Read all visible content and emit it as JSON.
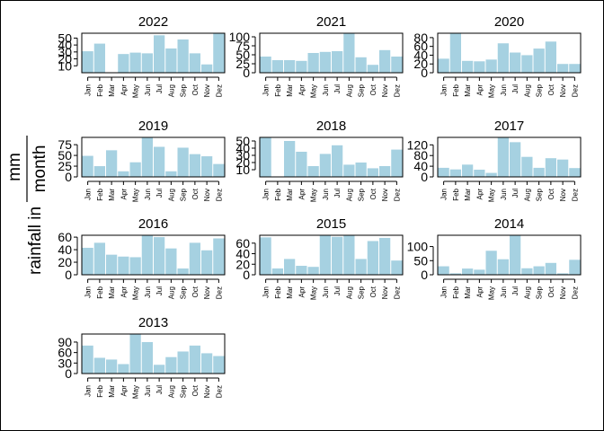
{
  "chart_data": {
    "type": "bar",
    "layout": "small-multiples",
    "ylabel_text": "rainfall in",
    "ylabel_numerator": "mm",
    "ylabel_denominator": "month",
    "months": [
      "Jan",
      "Feb",
      "Mar",
      "Apr",
      "May",
      "Jun",
      "Jul",
      "Aug",
      "Sep",
      "Oct",
      "Nov",
      "Dez"
    ],
    "bar_color": "#a6d1e1",
    "grid": false,
    "panels": [
      {
        "title": "2022",
        "ylim": [
          0,
          57
        ],
        "yticks": [
          10,
          20,
          30,
          40,
          50
        ],
        "values": [
          31,
          42,
          0,
          27,
          29,
          28,
          54,
          35,
          48,
          28,
          12,
          57
        ]
      },
      {
        "title": "2021",
        "ylim": [
          0,
          110
        ],
        "yticks": [
          0,
          25,
          50,
          75,
          100
        ],
        "values": [
          45,
          35,
          35,
          33,
          55,
          58,
          60,
          110,
          43,
          22,
          63,
          45
        ]
      },
      {
        "title": "2020",
        "ylim": [
          0,
          90
        ],
        "yticks": [
          0,
          20,
          40,
          60,
          80
        ],
        "values": [
          32,
          90,
          27,
          26,
          30,
          67,
          46,
          40,
          55,
          71,
          20,
          20
        ]
      },
      {
        "title": "2019",
        "ylim": [
          0,
          92
        ],
        "yticks": [
          0,
          25,
          50,
          75
        ],
        "values": [
          49,
          25,
          62,
          13,
          34,
          92,
          70,
          13,
          68,
          53,
          48,
          30
        ]
      },
      {
        "title": "2018",
        "ylim": [
          0,
          55
        ],
        "yticks": [
          10,
          20,
          30,
          40,
          50
        ],
        "values": [
          55,
          0,
          50,
          35,
          15,
          32,
          44,
          17,
          20,
          12,
          15,
          38
        ]
      },
      {
        "title": "2017",
        "ylim": [
          0,
          148
        ],
        "yticks": [
          0,
          40,
          80,
          120
        ],
        "values": [
          34,
          28,
          46,
          27,
          15,
          148,
          130,
          75,
          34,
          70,
          65,
          33
        ]
      },
      {
        "title": "2016",
        "ylim": [
          0,
          63
        ],
        "yticks": [
          0,
          20,
          40,
          60
        ],
        "values": [
          43,
          51,
          32,
          29,
          28,
          63,
          60,
          42,
          10,
          51,
          39,
          58
        ]
      },
      {
        "title": "2015",
        "ylim": [
          0,
          75
        ],
        "yticks": [
          0,
          20,
          40,
          60
        ],
        "values": [
          71,
          12,
          30,
          17,
          15,
          75,
          72,
          75,
          30,
          64,
          70,
          27
        ]
      },
      {
        "title": "2014",
        "ylim": [
          0,
          140
        ],
        "yticks": [
          0,
          50,
          100
        ],
        "values": [
          30,
          5,
          22,
          18,
          85,
          55,
          140,
          23,
          30,
          42,
          5,
          53
        ]
      },
      {
        "title": "2013",
        "ylim": [
          0,
          113
        ],
        "yticks": [
          0,
          30,
          60,
          90
        ],
        "values": [
          80,
          45,
          40,
          27,
          113,
          90,
          25,
          47,
          63,
          80,
          58,
          50
        ]
      }
    ]
  }
}
